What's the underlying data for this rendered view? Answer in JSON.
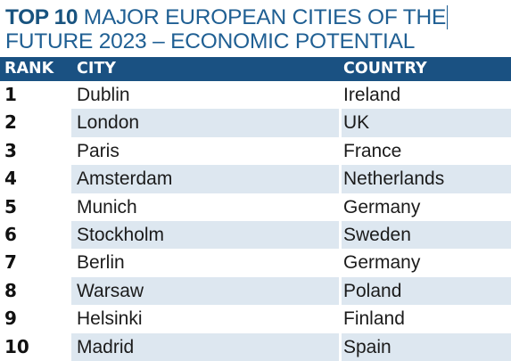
{
  "title": {
    "bold": "TOP 10",
    "rest": "MAJOR EUROPEAN CITIES OF THE",
    "line2": "FUTURE 2023 – ECONOMIC POTENTIAL"
  },
  "table": {
    "headers": {
      "rank": "RANK",
      "city": "CITY",
      "country": "COUNTRY"
    },
    "rows": [
      {
        "rank": "1",
        "city": "Dublin",
        "country": "Ireland"
      },
      {
        "rank": "2",
        "city": "London",
        "country": "UK"
      },
      {
        "rank": "3",
        "city": "Paris",
        "country": "France"
      },
      {
        "rank": "4",
        "city": "Amsterdam",
        "country": "Netherlands"
      },
      {
        "rank": "5",
        "city": "Munich",
        "country": "Germany"
      },
      {
        "rank": "6",
        "city": "Stockholm",
        "country": "Sweden"
      },
      {
        "rank": "7",
        "city": "Berlin",
        "country": "Germany"
      },
      {
        "rank": "8",
        "city": "Warsaw",
        "country": "Poland"
      },
      {
        "rank": "9",
        "city": "Helsinki",
        "country": "Finland"
      },
      {
        "rank": "10",
        "city": "Madrid",
        "country": "Spain"
      }
    ]
  },
  "colors": {
    "title": "#1f5f93",
    "header_bg": "#1a5182",
    "row_shade": "#dde7f0"
  }
}
